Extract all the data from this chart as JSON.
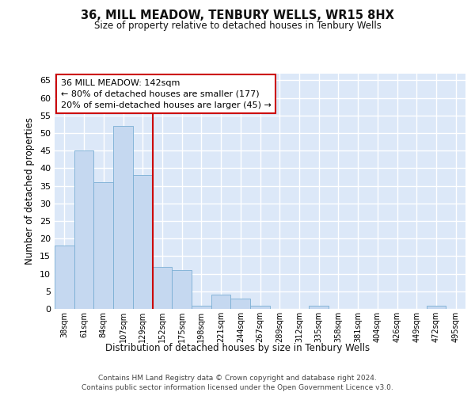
{
  "title1": "36, MILL MEADOW, TENBURY WELLS, WR15 8HX",
  "title2": "Size of property relative to detached houses in Tenbury Wells",
  "xlabel": "Distribution of detached houses by size in Tenbury Wells",
  "ylabel": "Number of detached properties",
  "categories": [
    "38sqm",
    "61sqm",
    "84sqm",
    "107sqm",
    "129sqm",
    "152sqm",
    "175sqm",
    "198sqm",
    "221sqm",
    "244sqm",
    "267sqm",
    "289sqm",
    "312sqm",
    "335sqm",
    "358sqm",
    "381sqm",
    "404sqm",
    "426sqm",
    "449sqm",
    "472sqm",
    "495sqm"
  ],
  "values": [
    18,
    45,
    36,
    52,
    38,
    12,
    11,
    1,
    4,
    3,
    1,
    0,
    0,
    1,
    0,
    0,
    0,
    0,
    0,
    1,
    0
  ],
  "bar_color": "#c5d8f0",
  "bar_edge_color": "#7aafd4",
  "vline_x": 4.5,
  "vline_color": "#cc0000",
  "annotation_line1": "36 MILL MEADOW: 142sqm",
  "annotation_line2": "← 80% of detached houses are smaller (177)",
  "annotation_line3": "20% of semi-detached houses are larger (45) →",
  "annotation_box_color": "#ffffff",
  "annotation_box_edge": "#cc0000",
  "ylim": [
    0,
    67
  ],
  "yticks": [
    0,
    5,
    10,
    15,
    20,
    25,
    30,
    35,
    40,
    45,
    50,
    55,
    60,
    65
  ],
  "footer1": "Contains HM Land Registry data © Crown copyright and database right 2024.",
  "footer2": "Contains public sector information licensed under the Open Government Licence v3.0.",
  "plot_bg_color": "#dce8f8",
  "grid_color": "#ffffff"
}
